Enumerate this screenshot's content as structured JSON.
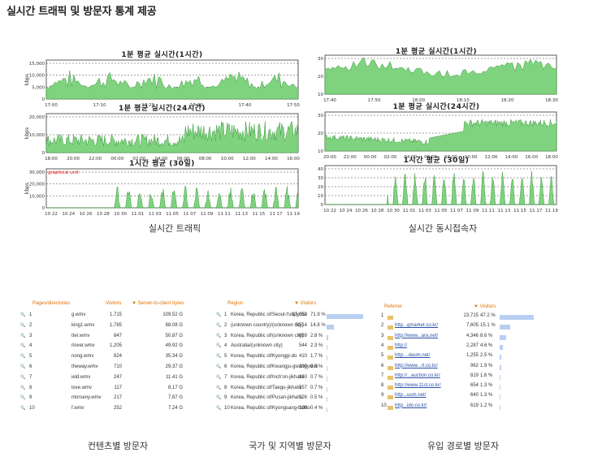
{
  "page_title": "실시간 트래픽 및 방문자 통계 제공",
  "captions": {
    "traffic": "실시간 트래픽",
    "concurrent": "실시간 동시접속자",
    "content": "컨텐츠별 방문자",
    "country": "국가 및 지역별 방문자",
    "referrer": "유입 경로별 방문자"
  },
  "left_charts": [
    {
      "title": "1분 평균 실시간(1시간)",
      "ylabel": "kbps",
      "yticks": [
        "15,000",
        "10,000",
        "5,000",
        "0"
      ],
      "xticks": [
        "17:00",
        "17:10",
        "17:20",
        "17:30",
        "17:40",
        "17:50"
      ]
    },
    {
      "title": "1분 평균 실시간(24시간)",
      "ylabel": "kbps",
      "yticks": [
        "20,000",
        "10,000",
        "0"
      ],
      "xticks": [
        "18:00",
        "20:00",
        "22:00",
        "00:00",
        "02:00",
        "04:00",
        "06:00",
        "08:00",
        "10:00",
        "12:00",
        "14:00",
        "16:00"
      ]
    },
    {
      "title": "1시간 평균 (30일)",
      "ylabel": "kbps",
      "note": "graphical unit",
      "yticks": [
        "30,000",
        "20,000",
        "10,000",
        "0"
      ],
      "xticks": [
        "10 22",
        "10 24",
        "10 26",
        "10 28",
        "10 30",
        "11 01",
        "11 03",
        "11 05",
        "11 07",
        "11 09",
        "11 11",
        "11 13",
        "11 15",
        "11 17",
        "11 19"
      ]
    }
  ],
  "right_charts": [
    {
      "title": "1분 평균 실시간(1시간)",
      "ylabel": "명",
      "yticks": [
        "30",
        "20",
        "10"
      ],
      "xticks": [
        "17:40",
        "17:50",
        "18:00",
        "18:10",
        "18:20",
        "18:30"
      ]
    },
    {
      "title": "1분 평균 실시간(24시간)",
      "ylabel": "명",
      "yticks": [
        "30",
        "20",
        "10"
      ],
      "xticks": [
        "20:00",
        "22:00",
        "00:00",
        "02:00",
        "04:00",
        "06:00",
        "08:00",
        "10:00",
        "12:00",
        "14:00",
        "16:00",
        "18:00"
      ]
    },
    {
      "title": "1시간 평균 (30일)",
      "ylabel": "명",
      "yticks": [
        "40",
        "30",
        "20",
        "10",
        "0"
      ],
      "xticks": [
        "10 22",
        "10 24",
        "10 26",
        "10 28",
        "10 30",
        "11 01",
        "11 03",
        "11 05",
        "11 07",
        "11 09",
        "11 11",
        "11 13",
        "11 15",
        "11 17",
        "11 19"
      ]
    }
  ],
  "content_table": {
    "headers": [
      "Pages/directories",
      "Visitors",
      "▼ Server-to-client bytes"
    ],
    "rows": [
      [
        "1",
        "g.wmv",
        "1,715",
        "109.52 G"
      ],
      [
        "2",
        "king1.wmv",
        "1,785",
        "88.08 G"
      ],
      [
        "3",
        "tter.wmv",
        "847",
        "50.87 G"
      ],
      [
        "4",
        "rlover.wmv",
        "1,205",
        "49.92 G"
      ],
      [
        "5",
        "nong.wmv",
        "824",
        "35.34 G"
      ],
      [
        "6",
        "theway.wmv",
        "710",
        "29.37 G"
      ],
      [
        "7",
        "ield.wmv",
        "247",
        "11.41 G"
      ],
      [
        "8",
        "love.wmv",
        "117",
        "8.17 G"
      ],
      [
        "9",
        "ntorseny.wmv",
        "217",
        "7.87 G"
      ],
      [
        "10",
        "f.wmv",
        "252",
        "7.24 G"
      ]
    ]
  },
  "country_table": {
    "headers": [
      "Region",
      "▼ Visitors"
    ],
    "rows": [
      [
        "1",
        "Korea, Republic of/Seoul-t'ukpyolsi",
        "17,053",
        "71.9 %",
        0.719
      ],
      [
        "2",
        "(unknown country)/(unknown city)",
        "3,514",
        "14.8 %",
        0.148
      ],
      [
        "3",
        "Korea, Republic of/(unknown city)",
        "659",
        "2.8 %",
        0.028
      ],
      [
        "4",
        "Australia/(unknown city)",
        "544",
        "2.3 %",
        0.023
      ],
      [
        "5",
        "Korea, Republic of/Kyonggi-do",
        "410",
        "1.7 %",
        0.017
      ],
      [
        "6",
        "Korea, Republic of/Kwangju-gwangyoksi",
        "200",
        "0.8 %",
        0.008
      ],
      [
        "7",
        "Korea, Republic of/Inch'on-jikhalsi",
        "160",
        "0.7 %",
        0.007
      ],
      [
        "8",
        "Korea, Republic of/Taegu-jikhalsi",
        "157",
        "0.7 %",
        0.007
      ],
      [
        "9",
        "Korea, Republic of/Pusan-jikhalsi",
        "126",
        "0.5 %",
        0.005
      ],
      [
        "10",
        "Korea, Republic of/Kyongsang-bukto",
        "106",
        "0.4 %",
        0.004
      ]
    ]
  },
  "referrer_table": {
    "headers": [
      "Referrer",
      "▼ Visitors"
    ],
    "rows": [
      [
        "1",
        "",
        "23,715",
        "47.2 %",
        0.472
      ],
      [
        "2",
        "http...gmarket.co.kr/",
        "7,605",
        "15.1 %",
        0.151
      ],
      [
        "3",
        "http://www...ara.net/",
        "4,346",
        "8.6 %",
        0.086
      ],
      [
        "4",
        "http://",
        "2,287",
        "4.6 %",
        0.046
      ],
      [
        "5",
        "http:...daum.net/",
        "1,255",
        "2.5 %",
        0.025
      ],
      [
        "6",
        "http://www...rt.co.kr/",
        "962",
        "1.9 %",
        0.019
      ],
      [
        "7",
        "http://...auction.co.kr/",
        "819",
        "1.6 %",
        0.016
      ],
      [
        "8",
        "http://www.11st.co.kr/",
        "654",
        "1.3 %",
        0.013
      ],
      [
        "9",
        "http...uum.net/",
        "640",
        "1.3 %",
        0.013
      ],
      [
        "10",
        "http...ido.co.kr/",
        "619",
        "1.2 %",
        0.012
      ]
    ]
  }
}
